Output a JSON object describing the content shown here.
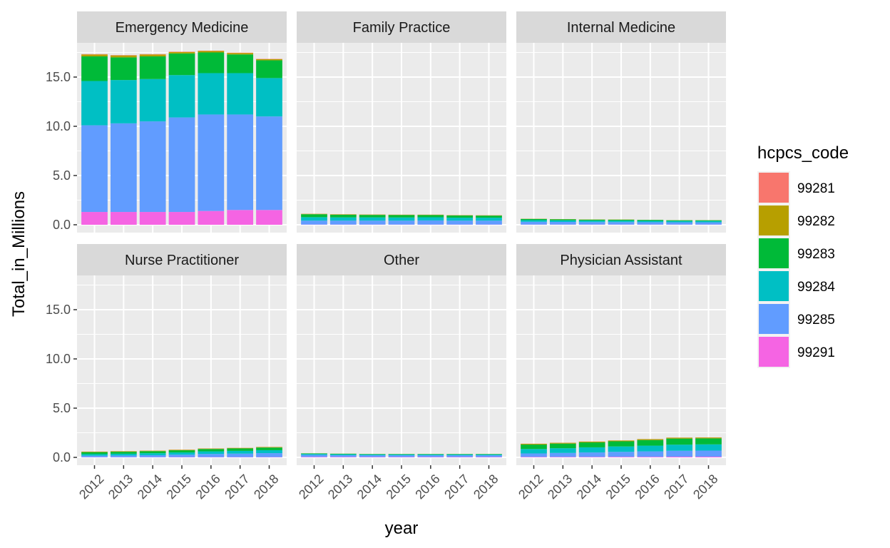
{
  "chart_data": {
    "type": "bar",
    "stacked": true,
    "facet": "provider_type",
    "x": [
      "2012",
      "2013",
      "2014",
      "2015",
      "2016",
      "2017",
      "2018"
    ],
    "xlabel": "year",
    "ylabel": "Total_in_Millions",
    "ylim": [
      0,
      18.5
    ],
    "yticks": [
      "0.0",
      "5.0",
      "10.0",
      "15.0"
    ],
    "grid": true,
    "legend": {
      "title": "hcpcs_code",
      "placement": "right",
      "entries": [
        {
          "label": "99281",
          "color": "#F8766D"
        },
        {
          "label": "99282",
          "color": "#B79F00"
        },
        {
          "label": "99283",
          "color": "#00BA38"
        },
        {
          "label": "99284",
          "color": "#00BFC4"
        },
        {
          "label": "99285",
          "color": "#619CFF"
        },
        {
          "label": "99291",
          "color": "#F564E3"
        }
      ]
    },
    "panels": [
      {
        "title": "Emergency Medicine",
        "series": [
          {
            "name": "99291",
            "values": [
              1.3,
              1.3,
              1.3,
              1.3,
              1.4,
              1.5,
              1.5
            ]
          },
          {
            "name": "99285",
            "values": [
              8.8,
              9.0,
              9.2,
              9.6,
              9.8,
              9.7,
              9.5
            ]
          },
          {
            "name": "99284",
            "values": [
              4.5,
              4.4,
              4.3,
              4.3,
              4.2,
              4.2,
              3.9
            ]
          },
          {
            "name": "99283",
            "values": [
              2.5,
              2.3,
              2.3,
              2.2,
              2.1,
              1.9,
              1.8
            ]
          },
          {
            "name": "99282",
            "values": [
              0.2,
              0.2,
              0.2,
              0.15,
              0.15,
              0.15,
              0.12
            ]
          },
          {
            "name": "99281",
            "values": [
              0.03,
              0.03,
              0.03,
              0.03,
              0.03,
              0.03,
              0.03
            ]
          }
        ]
      },
      {
        "title": "Family Practice",
        "series": [
          {
            "name": "99291",
            "values": [
              0.02,
              0.02,
              0.02,
              0.02,
              0.02,
              0.02,
              0.02
            ]
          },
          {
            "name": "99285",
            "values": [
              0.4,
              0.4,
              0.4,
              0.4,
              0.42,
              0.4,
              0.4
            ]
          },
          {
            "name": "99284",
            "values": [
              0.35,
              0.33,
              0.33,
              0.32,
              0.32,
              0.3,
              0.3
            ]
          },
          {
            "name": "99283",
            "values": [
              0.3,
              0.27,
              0.25,
              0.25,
              0.23,
              0.22,
              0.21
            ]
          },
          {
            "name": "99282",
            "values": [
              0.04,
              0.04,
              0.04,
              0.03,
              0.03,
              0.03,
              0.03
            ]
          },
          {
            "name": "99281",
            "values": [
              0.01,
              0.01,
              0.01,
              0.01,
              0.01,
              0.01,
              0.01
            ]
          }
        ]
      },
      {
        "title": "Internal Medicine",
        "series": [
          {
            "name": "99291",
            "values": [
              0.02,
              0.02,
              0.02,
              0.02,
              0.02,
              0.02,
              0.02
            ]
          },
          {
            "name": "99285",
            "values": [
              0.28,
              0.27,
              0.25,
              0.25,
              0.24,
              0.23,
              0.23
            ]
          },
          {
            "name": "99284",
            "values": [
              0.17,
              0.16,
              0.15,
              0.15,
              0.14,
              0.13,
              0.13
            ]
          },
          {
            "name": "99283",
            "values": [
              0.12,
              0.11,
              0.1,
              0.09,
              0.09,
              0.08,
              0.08
            ]
          },
          {
            "name": "99282",
            "values": [
              0.02,
              0.02,
              0.02,
              0.02,
              0.01,
              0.01,
              0.01
            ]
          },
          {
            "name": "99281",
            "values": [
              0.0,
              0.0,
              0.0,
              0.0,
              0.0,
              0.0,
              0.0
            ]
          }
        ]
      },
      {
        "title": "Nurse Practitioner",
        "series": [
          {
            "name": "99291",
            "values": [
              0.02,
              0.02,
              0.02,
              0.03,
              0.03,
              0.03,
              0.03
            ]
          },
          {
            "name": "99285",
            "values": [
              0.15,
              0.17,
              0.2,
              0.25,
              0.32,
              0.35,
              0.4
            ]
          },
          {
            "name": "99284",
            "values": [
              0.16,
              0.18,
              0.2,
              0.22,
              0.26,
              0.28,
              0.3
            ]
          },
          {
            "name": "99283",
            "values": [
              0.2,
              0.2,
              0.21,
              0.22,
              0.24,
              0.25,
              0.27
            ]
          },
          {
            "name": "99282",
            "values": [
              0.05,
              0.05,
              0.05,
              0.05,
              0.05,
              0.05,
              0.05
            ]
          },
          {
            "name": "99281",
            "values": [
              0.01,
              0.01,
              0.01,
              0.01,
              0.01,
              0.01,
              0.01
            ]
          }
        ]
      },
      {
        "title": "Other",
        "series": [
          {
            "name": "99291",
            "values": [
              0.05,
              0.05,
              0.04,
              0.04,
              0.04,
              0.04,
              0.04
            ]
          },
          {
            "name": "99285",
            "values": [
              0.2,
              0.18,
              0.17,
              0.17,
              0.17,
              0.17,
              0.17
            ]
          },
          {
            "name": "99284",
            "values": [
              0.1,
              0.09,
              0.09,
              0.09,
              0.09,
              0.09,
              0.09
            ]
          },
          {
            "name": "99283",
            "values": [
              0.05,
              0.05,
              0.04,
              0.04,
              0.04,
              0.04,
              0.04
            ]
          },
          {
            "name": "99282",
            "values": [
              0.01,
              0.01,
              0.01,
              0.01,
              0.01,
              0.01,
              0.01
            ]
          },
          {
            "name": "99281",
            "values": [
              0.0,
              0.0,
              0.0,
              0.0,
              0.0,
              0.0,
              0.0
            ]
          }
        ]
      },
      {
        "title": "Physician Assistant",
        "series": [
          {
            "name": "99291",
            "values": [
              0.05,
              0.05,
              0.05,
              0.06,
              0.06,
              0.07,
              0.07
            ]
          },
          {
            "name": "99285",
            "values": [
              0.35,
              0.4,
              0.45,
              0.5,
              0.55,
              0.6,
              0.62
            ]
          },
          {
            "name": "99284",
            "values": [
              0.45,
              0.48,
              0.52,
              0.55,
              0.58,
              0.62,
              0.63
            ]
          },
          {
            "name": "99283",
            "values": [
              0.45,
              0.47,
              0.5,
              0.52,
              0.57,
              0.62,
              0.61
            ]
          },
          {
            "name": "99282",
            "values": [
              0.08,
              0.08,
              0.08,
              0.08,
              0.09,
              0.09,
              0.09
            ]
          },
          {
            "name": "99281",
            "values": [
              0.01,
              0.01,
              0.01,
              0.01,
              0.01,
              0.01,
              0.01
            ]
          }
        ]
      }
    ]
  }
}
